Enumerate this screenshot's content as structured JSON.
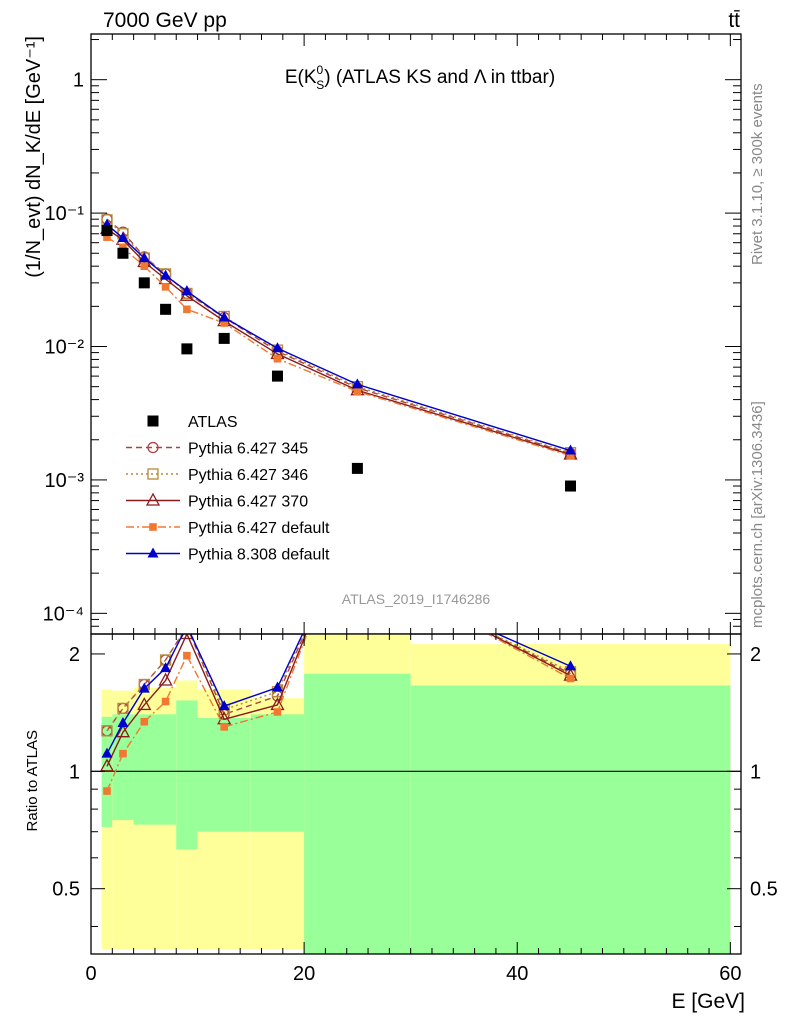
{
  "header": {
    "left": "7000 GeV pp",
    "right": "tt̄"
  },
  "title": {
    "prefix": "E(K",
    "sup": "0",
    "sub": "S",
    "suffix": ") (ATLAS KS and Λ in ttbar)"
  },
  "side_labels": {
    "rivet": "Rivet 3.1.10, ≥ 300k events",
    "mcplots": "mcplots.cern.ch [arXiv:1306.3436]"
  },
  "analysis_tag": "ATLAS_2019_I1746286",
  "ylabel_main": "(1/N_evt) dN_K/dE [GeV⁻¹]",
  "ylabel_ratio": "Ratio to ATLAS",
  "xlabel": "E [GeV]",
  "colors": {
    "atlas": "#000000",
    "p345": "#b04040",
    "p346": "#b58a3a",
    "p370": "#8b1a1a",
    "p6def": "#f07830",
    "p8def": "#0000cc",
    "band_yellow": "#ffff99",
    "band_green": "#99ff99"
  },
  "chart_data": {
    "type": "line",
    "x_unit": "GeV",
    "xlim": [
      0,
      61
    ],
    "ylim_main": [
      7e-05,
      2.2
    ],
    "yscale_main": "log",
    "ylim_ratio": [
      0.34,
      2.25
    ],
    "yscale_ratio": "log",
    "x_ticks": [
      0,
      20,
      40,
      60
    ],
    "main_y_ticks": [
      {
        "value": 1,
        "label": "1"
      },
      {
        "value": 0.1,
        "label": "10⁻¹"
      },
      {
        "value": 0.01,
        "label": "10⁻²"
      },
      {
        "value": 0.001,
        "label": "10⁻³"
      },
      {
        "value": 0.0001,
        "label": "10⁻⁴"
      }
    ],
    "ratio_y_ticks": [
      {
        "value": 0.5,
        "label": "0.5"
      },
      {
        "value": 1,
        "label": "1"
      },
      {
        "value": 2,
        "label": "2"
      }
    ],
    "legend_position": "middle-left",
    "x": [
      1.5,
      3,
      5,
      7,
      9,
      12.5,
      17.5,
      25,
      45
    ],
    "atlas": [
      0.074,
      0.05,
      0.03,
      0.019,
      0.0096,
      0.0115,
      0.006,
      0.00122,
      0.0009
    ],
    "series": [
      {
        "name": "Pythia 6.427 345",
        "key": "p345",
        "marker": "open-circle",
        "dash": "6,4",
        "values": [
          0.09,
          0.072,
          0.047,
          0.035,
          0.025,
          0.0165,
          0.0092,
          0.0049,
          0.00158
        ]
      },
      {
        "name": "Pythia 6.427 346",
        "key": "p346",
        "marker": "open-square",
        "dash": "2,3",
        "values": [
          0.089,
          0.07,
          0.046,
          0.035,
          0.025,
          0.0168,
          0.0094,
          0.005,
          0.0016
        ]
      },
      {
        "name": "Pythia 6.427 370",
        "key": "p370",
        "marker": "open-triangle",
        "dash": "",
        "values": [
          0.076,
          0.063,
          0.043,
          0.032,
          0.024,
          0.0155,
          0.0088,
          0.0047,
          0.00155
        ]
      },
      {
        "name": "Pythia 6.427 default",
        "key": "p6def",
        "marker": "filled-square",
        "dash": "8,3,2,3",
        "values": [
          0.066,
          0.055,
          0.04,
          0.028,
          0.019,
          0.015,
          0.0081,
          0.0046,
          0.00152
        ]
      },
      {
        "name": "Pythia 8.308 default",
        "key": "p8def",
        "marker": "filled-triangle",
        "dash": "",
        "values": [
          0.082,
          0.065,
          0.046,
          0.034,
          0.026,
          0.0165,
          0.0097,
          0.0052,
          0.00166
        ]
      }
    ],
    "ratio_x": [
      1.5,
      3,
      5,
      7,
      9,
      12.5,
      17.5,
      45
    ],
    "ratio_series": [
      {
        "key": "p345",
        "values": [
          1.27,
          1.45,
          1.67,
          1.93,
          2.35,
          1.4,
          1.56,
          1.78
        ]
      },
      {
        "key": "p346",
        "values": [
          1.27,
          1.45,
          1.67,
          1.93,
          2.35,
          1.44,
          1.6,
          1.8
        ]
      },
      {
        "key": "p370",
        "values": [
          1.03,
          1.26,
          1.48,
          1.71,
          2.25,
          1.36,
          1.48,
          1.76
        ]
      },
      {
        "key": "p6def",
        "values": [
          0.89,
          1.11,
          1.34,
          1.51,
          1.98,
          1.3,
          1.42,
          1.73
        ]
      },
      {
        "key": "p8def",
        "values": [
          1.11,
          1.33,
          1.63,
          1.84,
          2.36,
          1.47,
          1.64,
          1.86
        ]
      }
    ],
    "ratio_bands": [
      {
        "x0": 1,
        "x1": 2,
        "yellow": [
          0.35,
          1.62
        ],
        "green": [
          0.72,
          1.38
        ]
      },
      {
        "x0": 2,
        "x1": 4,
        "yellow": [
          0.35,
          1.61
        ],
        "green": [
          0.75,
          1.4
        ]
      },
      {
        "x0": 4,
        "x1": 8,
        "yellow": [
          0.35,
          1.64
        ],
        "green": [
          0.73,
          1.4
        ]
      },
      {
        "x0": 8,
        "x1": 10,
        "yellow": [
          0.35,
          1.71
        ],
        "green": [
          0.63,
          1.52
        ]
      },
      {
        "x0": 10,
        "x1": 15,
        "yellow": [
          0.35,
          1.62
        ],
        "green": [
          0.7,
          1.37
        ]
      },
      {
        "x0": 15,
        "x1": 20,
        "yellow": [
          0.35,
          1.54
        ],
        "green": [
          0.7,
          1.4
        ]
      },
      {
        "x0": 20,
        "x1": 30,
        "yellow": [
          0.34,
          2.25
        ],
        "green": [
          0.34,
          1.78
        ]
      },
      {
        "x0": 30,
        "x1": 60,
        "yellow": [
          0.34,
          2.12
        ],
        "green": [
          0.34,
          1.66
        ]
      }
    ]
  }
}
